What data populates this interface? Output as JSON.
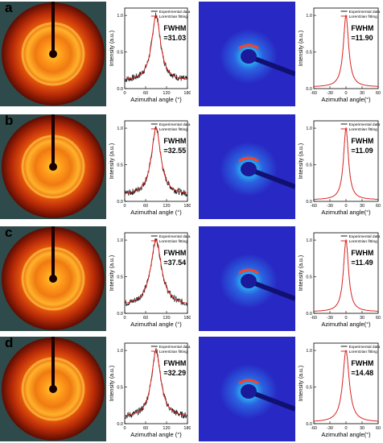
{
  "colors": {
    "experimental": "#1a1a1a",
    "fitting": "#e8201c",
    "waxs_bg": "#2f4a4a",
    "saxs_bg": "#2828c4"
  },
  "legend": {
    "experimental": "Experimental data",
    "fitting": "Lorentzian fitting"
  },
  "rows": [
    {
      "label": "a"
    },
    {
      "label": "b"
    },
    {
      "label": "c"
    },
    {
      "label": "d"
    }
  ],
  "chart_data": [
    {
      "type": "line",
      "panel": "a-waxs",
      "fwhm_label": "FWHM",
      "fwhm_value": "=31.03",
      "xlabel": "Azimuthal angle (°)",
      "ylabel": "Intensity (a.u.)",
      "xlim": [
        0,
        180
      ],
      "ylim": [
        0,
        1.1
      ],
      "xticks": [
        "0",
        "60",
        "120",
        "180"
      ],
      "yticks": [
        "0.0",
        "0.5",
        "1.0"
      ],
      "series": [
        {
          "name": "Experimental data",
          "center": 90,
          "fwhm": 31.03,
          "baseline": 0.1,
          "noisy": true
        },
        {
          "name": "Lorentzian fitting",
          "center": 90,
          "fwhm": 31.03,
          "baseline": 0.1
        }
      ]
    },
    {
      "type": "line",
      "panel": "a-saxs",
      "fwhm_label": "FWHM",
      "fwhm_value": "=11.90",
      "xlabel": "Azimuthal angle(°)",
      "ylabel": "Intensity (a.u.)",
      "xlim": [
        -60,
        60
      ],
      "ylim": [
        0,
        1.1
      ],
      "xticks": [
        "-60",
        "-30",
        "0",
        "30",
        "60"
      ],
      "yticks": [
        "0.0",
        "0.5",
        "1.0"
      ],
      "series": [
        {
          "name": "Experimental data",
          "center": 0,
          "fwhm": 11.9,
          "baseline": 0.02
        },
        {
          "name": "Lorentzian fitting",
          "center": 0,
          "fwhm": 11.9,
          "baseline": 0.02
        }
      ]
    },
    {
      "type": "line",
      "panel": "b-waxs",
      "fwhm_label": "FWHM",
      "fwhm_value": "=32.55",
      "xlabel": "Azimuthal angle (°)",
      "ylabel": "Intensity (a.u.)",
      "xlim": [
        0,
        180
      ],
      "ylim": [
        0,
        1.1
      ],
      "xticks": [
        "0",
        "60",
        "120",
        "180"
      ],
      "yticks": [
        "0.0",
        "0.5",
        "1.0"
      ],
      "series": [
        {
          "name": "Experimental data",
          "center": 90,
          "fwhm": 32.55,
          "baseline": 0.08,
          "noisy": true
        },
        {
          "name": "Lorentzian fitting",
          "center": 90,
          "fwhm": 32.55,
          "baseline": 0.08
        }
      ]
    },
    {
      "type": "line",
      "panel": "b-saxs",
      "fwhm_label": "FWHM",
      "fwhm_value": "=11.09",
      "xlabel": "Azimuthal angle(°)",
      "ylabel": "Intensity (a.u.)",
      "xlim": [
        -60,
        60
      ],
      "ylim": [
        0,
        1.1
      ],
      "xticks": [
        "-60",
        "-30",
        "0",
        "30",
        "60"
      ],
      "yticks": [
        "0.0",
        "0.5",
        "1.0"
      ],
      "series": [
        {
          "name": "Experimental data",
          "center": 0,
          "fwhm": 11.09,
          "baseline": 0.02
        },
        {
          "name": "Lorentzian fitting",
          "center": 0,
          "fwhm": 11.09,
          "baseline": 0.02
        }
      ]
    },
    {
      "type": "line",
      "panel": "c-waxs",
      "fwhm_label": "FWHM",
      "fwhm_value": "=37.54",
      "xlabel": "Azimuthal angle (°)",
      "ylabel": "Intensity (a.u.)",
      "xlim": [
        0,
        180
      ],
      "ylim": [
        0,
        1.1
      ],
      "xticks": [
        "0",
        "60",
        "120",
        "180"
      ],
      "yticks": [
        "0.0",
        "0.5",
        "1.0"
      ],
      "series": [
        {
          "name": "Experimental data",
          "center": 90,
          "fwhm": 37.54,
          "baseline": 0.1,
          "noisy": true
        },
        {
          "name": "Lorentzian fitting",
          "center": 90,
          "fwhm": 37.54,
          "baseline": 0.1
        }
      ]
    },
    {
      "type": "line",
      "panel": "c-saxs",
      "fwhm_label": "FWHM",
      "fwhm_value": "=11.49",
      "xlabel": "Azimuthal angle(°)",
      "ylabel": "Intensity (a.u.)",
      "xlim": [
        -60,
        60
      ],
      "ylim": [
        0,
        1.1
      ],
      "xticks": [
        "-60",
        "-30",
        "0",
        "30",
        "60"
      ],
      "yticks": [
        "0.0",
        "0.5",
        "1.0"
      ],
      "series": [
        {
          "name": "Experimental data",
          "center": 0,
          "fwhm": 11.49,
          "baseline": 0.02
        },
        {
          "name": "Lorentzian fitting",
          "center": 0,
          "fwhm": 11.49,
          "baseline": 0.02
        }
      ]
    },
    {
      "type": "line",
      "panel": "d-waxs",
      "fwhm_label": "FWHM",
      "fwhm_value": "=32.29",
      "xlabel": "Azimuthal angle (°)",
      "ylabel": "Intensity (a.u.)",
      "xlim": [
        0,
        180
      ],
      "ylim": [
        0,
        1.1
      ],
      "xticks": [
        "0",
        "60",
        "120",
        "180"
      ],
      "yticks": [
        "0.0",
        "0.5",
        "1.0"
      ],
      "series": [
        {
          "name": "Experimental data",
          "center": 90,
          "fwhm": 32.29,
          "baseline": 0.08,
          "noisy": true
        },
        {
          "name": "Lorentzian fitting",
          "center": 90,
          "fwhm": 32.29,
          "baseline": 0.08
        }
      ]
    },
    {
      "type": "line",
      "panel": "d-saxs",
      "fwhm_label": "FWHM",
      "fwhm_value": "=14.48",
      "xlabel": "Azimuthal angle(°)",
      "ylabel": "Intensity (a.u.)",
      "xlim": [
        -60,
        60
      ],
      "ylim": [
        0,
        1.1
      ],
      "xticks": [
        "-60",
        "-30",
        "0",
        "30",
        "60"
      ],
      "yticks": [
        "0.0",
        "0.5",
        "1.0"
      ],
      "series": [
        {
          "name": "Experimental data",
          "center": 0,
          "fwhm": 14.48,
          "baseline": 0.02
        },
        {
          "name": "Lorentzian fitting",
          "center": 0,
          "fwhm": 14.48,
          "baseline": 0.02
        }
      ]
    }
  ]
}
